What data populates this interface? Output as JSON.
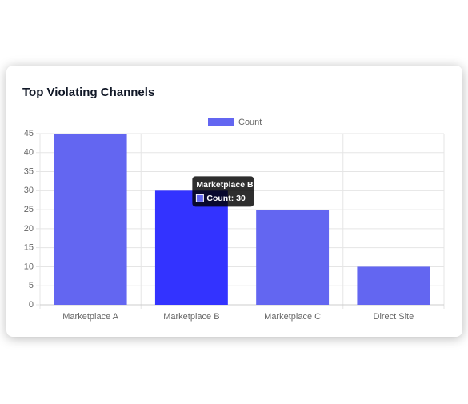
{
  "chart_data": {
    "type": "bar",
    "title": "Top Violating Channels",
    "categories": [
      "Marketplace A",
      "Marketplace B",
      "Marketplace C",
      "Direct Site"
    ],
    "series": [
      {
        "name": "Count",
        "color": "#6366f1",
        "hover_color": "#3333ff",
        "values": [
          45,
          30,
          25,
          10
        ]
      }
    ],
    "ylim": [
      0,
      45
    ],
    "yticks": [
      0,
      5,
      10,
      15,
      20,
      25,
      30,
      35,
      40,
      45
    ],
    "grid": true,
    "legend": "top",
    "tooltip": {
      "title": "Marketplace B",
      "label": "Count: 30"
    }
  }
}
